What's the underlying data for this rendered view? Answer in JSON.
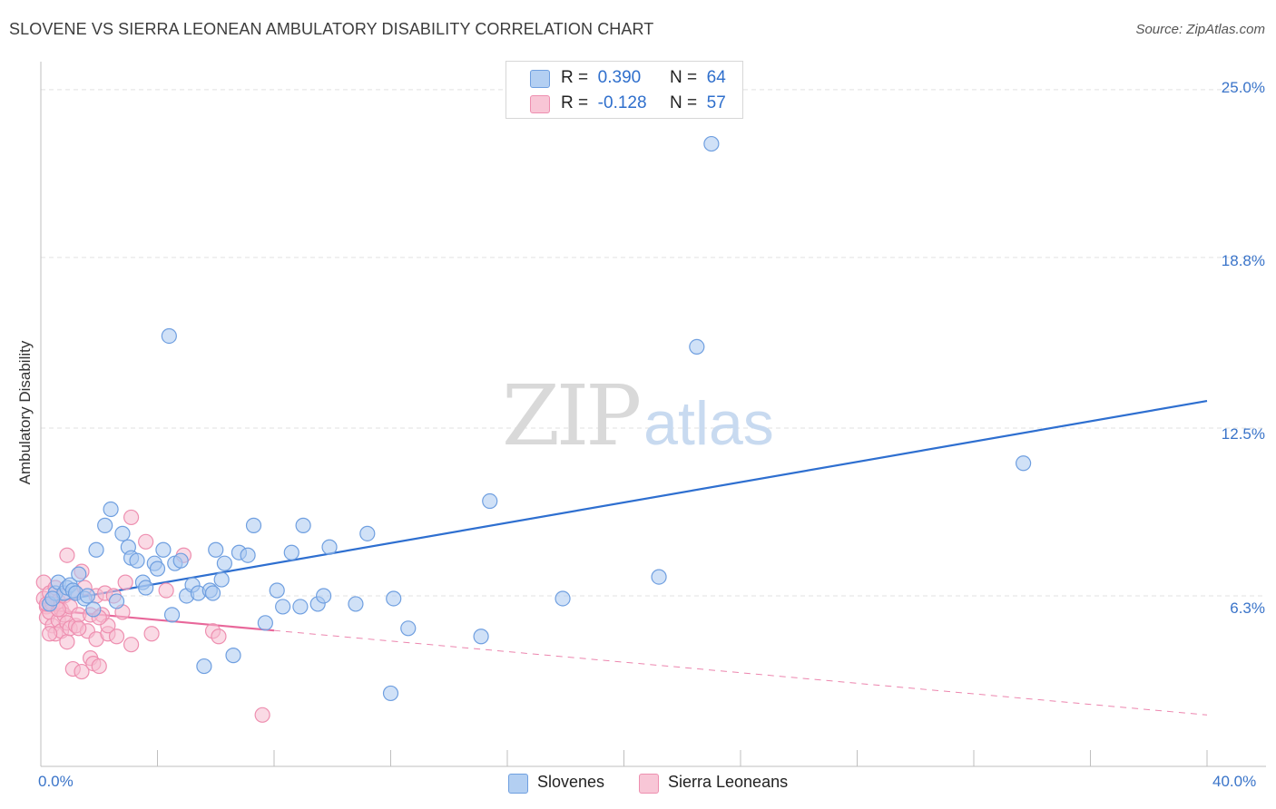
{
  "title": "SLOVENE VS SIERRA LEONEAN AMBULATORY DISABILITY CORRELATION CHART",
  "source": "Source: ZipAtlas.com",
  "watermark": {
    "zip": "ZIP",
    "atlas": "atlas"
  },
  "legend": {
    "series1": {
      "r_label": "R =",
      "r_value": "0.390",
      "n_label": "N =",
      "n_value": "64"
    },
    "series2": {
      "r_label": "R =",
      "r_value": "-0.128",
      "n_label": "N =",
      "n_value": "57"
    }
  },
  "chart_data": {
    "type": "scatter",
    "title": "SLOVENE VS SIERRA LEONEAN AMBULATORY DISABILITY CORRELATION CHART",
    "xlabel": "",
    "ylabel": "Ambulatory Disability",
    "xlim": [
      0,
      40
    ],
    "ylim": [
      0,
      25
    ],
    "x_tick_labels": [
      "0.0%",
      "40.0%"
    ],
    "y_ticks": [
      6.3,
      12.5,
      18.8,
      25.0
    ],
    "y_tick_labels": [
      "6.3%",
      "12.5%",
      "18.8%",
      "25.0%"
    ],
    "colors": {
      "slovenes_fill": "#a9c8f0",
      "slovenes_stroke": "#6f9fe0",
      "slovenes_line": "#2e6fd0",
      "sierra_fill": "#f6bcd0",
      "sierra_stroke": "#ee8fb0",
      "sierra_line": "#e8679a"
    },
    "series": [
      {
        "name": "Slovenes",
        "r": 0.39,
        "n": 64,
        "trend": {
          "x": [
            0,
            40
          ],
          "y": [
            6.0,
            13.5
          ]
        },
        "points": [
          [
            0.3,
            6.0
          ],
          [
            0.5,
            6.4
          ],
          [
            0.6,
            6.8
          ],
          [
            0.8,
            6.4
          ],
          [
            0.9,
            6.6
          ],
          [
            1.0,
            6.7
          ],
          [
            1.1,
            6.5
          ],
          [
            1.2,
            6.4
          ],
          [
            1.3,
            7.1
          ],
          [
            1.5,
            6.2
          ],
          [
            1.6,
            6.3
          ],
          [
            1.8,
            5.8
          ],
          [
            1.9,
            8.0
          ],
          [
            2.2,
            8.9
          ],
          [
            2.4,
            9.5
          ],
          [
            2.6,
            6.1
          ],
          [
            2.8,
            8.6
          ],
          [
            3.0,
            8.1
          ],
          [
            3.1,
            7.7
          ],
          [
            3.3,
            7.6
          ],
          [
            3.5,
            6.8
          ],
          [
            3.6,
            6.6
          ],
          [
            3.9,
            7.5
          ],
          [
            4.0,
            7.3
          ],
          [
            4.2,
            8.0
          ],
          [
            4.4,
            15.9
          ],
          [
            4.5,
            5.6
          ],
          [
            4.6,
            7.5
          ],
          [
            4.8,
            7.6
          ],
          [
            5.0,
            6.3
          ],
          [
            5.2,
            6.7
          ],
          [
            5.4,
            6.4
          ],
          [
            5.6,
            3.7
          ],
          [
            5.8,
            6.5
          ],
          [
            5.9,
            6.4
          ],
          [
            6.0,
            8.0
          ],
          [
            6.2,
            6.9
          ],
          [
            6.3,
            7.5
          ],
          [
            6.6,
            4.1
          ],
          [
            6.8,
            7.9
          ],
          [
            7.1,
            7.8
          ],
          [
            7.3,
            8.9
          ],
          [
            7.7,
            5.3
          ],
          [
            8.1,
            6.5
          ],
          [
            8.3,
            5.9
          ],
          [
            8.6,
            7.9
          ],
          [
            8.9,
            5.9
          ],
          [
            9.0,
            8.9
          ],
          [
            9.5,
            6.0
          ],
          [
            9.7,
            6.3
          ],
          [
            9.9,
            8.1
          ],
          [
            10.8,
            6.0
          ],
          [
            11.2,
            8.6
          ],
          [
            12.0,
            2.7
          ],
          [
            12.1,
            6.2
          ],
          [
            12.6,
            5.1
          ],
          [
            15.1,
            4.8
          ],
          [
            15.4,
            9.8
          ],
          [
            17.9,
            6.2
          ],
          [
            21.2,
            7.0
          ],
          [
            22.5,
            15.5
          ],
          [
            23.0,
            23.0
          ],
          [
            33.7,
            11.2
          ],
          [
            0.4,
            6.2
          ]
        ]
      },
      {
        "name": "Sierra Leoneans",
        "r": -0.128,
        "n": 57,
        "trend": {
          "x": [
            0,
            40
          ],
          "y": [
            5.8,
            1.9
          ],
          "solid_until_x": 8.0
        },
        "points": [
          [
            0.1,
            6.8
          ],
          [
            0.1,
            6.2
          ],
          [
            0.2,
            5.9
          ],
          [
            0.2,
            5.5
          ],
          [
            0.3,
            6.4
          ],
          [
            0.3,
            5.7
          ],
          [
            0.4,
            5.2
          ],
          [
            0.4,
            6.0
          ],
          [
            0.5,
            4.9
          ],
          [
            0.5,
            6.6
          ],
          [
            0.6,
            5.4
          ],
          [
            0.6,
            6.1
          ],
          [
            0.7,
            5.8
          ],
          [
            0.7,
            5.0
          ],
          [
            0.8,
            5.6
          ],
          [
            0.8,
            6.3
          ],
          [
            0.9,
            5.3
          ],
          [
            0.9,
            4.6
          ],
          [
            1.0,
            5.9
          ],
          [
            1.0,
            5.1
          ],
          [
            0.9,
            7.8
          ],
          [
            1.1,
            3.6
          ],
          [
            1.2,
            5.2
          ],
          [
            1.2,
            6.4
          ],
          [
            1.3,
            5.6
          ],
          [
            1.4,
            3.5
          ],
          [
            1.4,
            7.2
          ],
          [
            1.5,
            6.6
          ],
          [
            1.6,
            5.0
          ],
          [
            1.7,
            4.0
          ],
          [
            1.7,
            5.6
          ],
          [
            1.8,
            3.8
          ],
          [
            1.9,
            4.7
          ],
          [
            1.9,
            6.3
          ],
          [
            2.0,
            3.7
          ],
          [
            2.1,
            5.6
          ],
          [
            2.2,
            6.4
          ],
          [
            2.3,
            4.9
          ],
          [
            2.3,
            5.2
          ],
          [
            2.5,
            6.3
          ],
          [
            2.6,
            4.8
          ],
          [
            2.8,
            5.7
          ],
          [
            2.9,
            6.8
          ],
          [
            3.1,
            4.5
          ],
          [
            3.1,
            9.2
          ],
          [
            3.6,
            8.3
          ],
          [
            3.8,
            4.9
          ],
          [
            4.3,
            6.5
          ],
          [
            4.9,
            7.8
          ],
          [
            5.9,
            5.0
          ],
          [
            6.1,
            4.8
          ],
          [
            7.6,
            1.9
          ],
          [
            0.3,
            4.9
          ],
          [
            0.6,
            5.8
          ],
          [
            1.3,
            5.1
          ],
          [
            0.2,
            6.0
          ],
          [
            2.0,
            5.5
          ]
        ]
      }
    ]
  },
  "bottom_legend": {
    "series1": "Slovenes",
    "series2": "Sierra Leoneans"
  }
}
